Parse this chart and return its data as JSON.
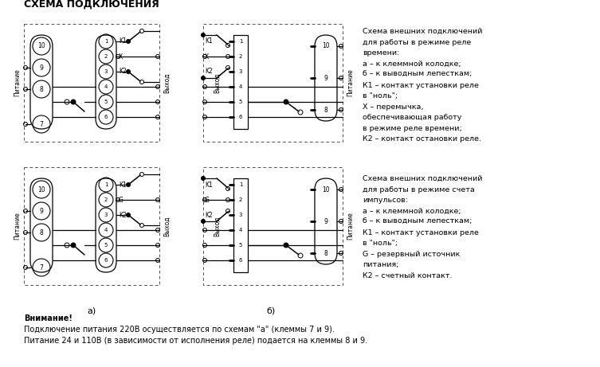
{
  "title": "СХЕМА ПОДКЛЮЧЕНИЯ",
  "bg_color": "#ffffff",
  "line_color": "#000000",
  "text_color": "#000000",
  "right_text_top": [
    "Схема внешних подключений",
    "для работы в режиме реле",
    "времени:",
    "а – к клеммной колодке;",
    "б – к выводным лепесткам;",
    "К1 – контакт установки реле",
    "в \"ноль\";",
    "Х – перемычка,",
    "обеспечивающая работу",
    "в режиме реле времени;",
    "К2 – контакт остановки реле."
  ],
  "right_text_bottom": [
    "Схема внешних подключений",
    "для работы в режиме счета",
    "импульсов:",
    "а – к клеммной колодке;",
    "б – к выводным лепесткам;",
    "К1 – контакт установки реле",
    "в \"ноль\";",
    "G – резервный источник",
    "питания;",
    "К2 – счетный контакт."
  ],
  "bottom_note": [
    "Внимание!",
    "Подключение питания 220В осуществляется по схемам \"а\" (клеммы 7 и 9).",
    "Питание 24 и 110В (в зависимости от исполнения реле) подается на клеммы 8 и 9."
  ],
  "label_a": "а)",
  "label_b": "б)"
}
